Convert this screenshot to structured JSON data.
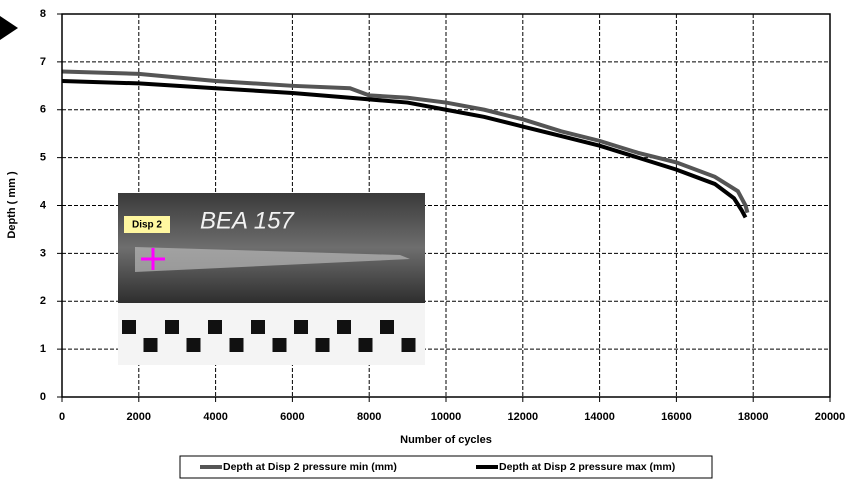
{
  "chart_data": {
    "type": "line",
    "x_label": "Number of cycles",
    "y_label": "Depth ( mm )",
    "xlim": [
      0,
      20000
    ],
    "xticks": [
      0,
      2000,
      4000,
      6000,
      8000,
      10000,
      12000,
      14000,
      16000,
      18000,
      20000
    ],
    "ylim": [
      0,
      8
    ],
    "yticks": [
      0,
      1,
      2,
      3,
      4,
      5,
      6,
      7,
      8
    ],
    "grid": true,
    "series": [
      {
        "name": "Depth at Disp 2 pressure min (mm)",
        "color": "#555555",
        "x": [
          0,
          2000,
          4000,
          6000,
          7500,
          8000,
          9000,
          10000,
          11000,
          12000,
          13000,
          14000,
          15000,
          16000,
          17000,
          17600,
          17800,
          17850
        ],
        "values": [
          6.8,
          6.75,
          6.6,
          6.5,
          6.45,
          6.3,
          6.25,
          6.15,
          6.0,
          5.8,
          5.55,
          5.35,
          5.1,
          4.9,
          4.6,
          4.3,
          4.0,
          3.85
        ]
      },
      {
        "name": "Depth at Disp 2 pressure max (mm)",
        "color": "#000000",
        "x": [
          0,
          2000,
          4000,
          6000,
          7500,
          9000,
          10000,
          11000,
          12000,
          13000,
          14000,
          15000,
          16000,
          17000,
          17500,
          17700,
          17800
        ],
        "values": [
          6.6,
          6.55,
          6.45,
          6.35,
          6.25,
          6.15,
          6.0,
          5.85,
          5.65,
          5.45,
          5.25,
          5.0,
          4.75,
          4.45,
          4.15,
          3.9,
          3.75
        ]
      }
    ]
  },
  "photo": {
    "label": "Disp 2",
    "caption": "BEA 157"
  }
}
